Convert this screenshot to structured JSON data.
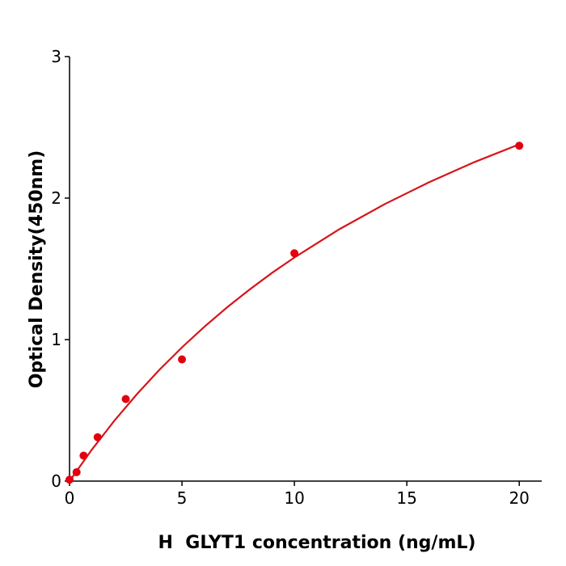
{
  "chart_data": {
    "type": "scatter",
    "x_label": "H  GLYT1 concentration (ng/mL)",
    "y_label": "Optical Density(450nm)",
    "x": [
      0,
      0.3125,
      0.625,
      1.25,
      2.5,
      5,
      10,
      20
    ],
    "values": [
      0.01,
      0.063,
      0.18,
      0.31,
      0.58,
      0.86,
      1.61,
      2.37
    ],
    "color": "#e3000f",
    "fit": {
      "type": "line",
      "color": "#d71418",
      "x": [
        0,
        1,
        2,
        3,
        4,
        5,
        6,
        7,
        8,
        9,
        10,
        12,
        14,
        16,
        18,
        20
      ],
      "values": [
        0,
        0.224,
        0.428,
        0.615,
        0.787,
        0.945,
        1.091,
        1.227,
        1.353,
        1.471,
        1.58,
        1.78,
        1.956,
        2.113,
        2.254,
        2.38
      ]
    },
    "xlim": [
      0,
      21
    ],
    "ylim": [
      0,
      3
    ],
    "xticks": [
      0,
      5,
      10,
      15,
      20
    ],
    "yticks": [
      0,
      1,
      2,
      3
    ]
  }
}
